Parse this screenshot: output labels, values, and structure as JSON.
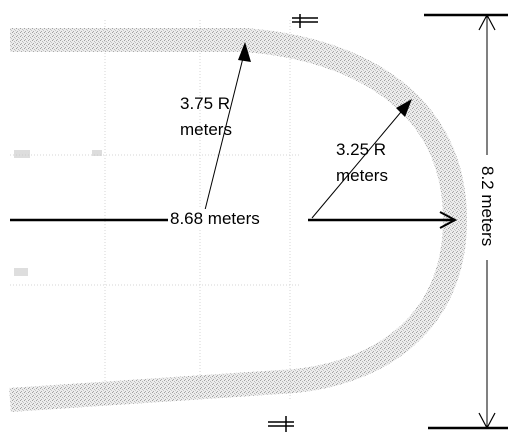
{
  "diagram": {
    "length_label": "8.68 meters",
    "width_label": "8.2 meters",
    "radius_outer_value": "3.75 R",
    "radius_outer_unit": "meters",
    "radius_inner_value": "3.25 R",
    "radius_inner_unit": "meters"
  },
  "colors": {
    "line": "#000000",
    "track_fill": "#b4b4b4",
    "grid": "#d2d2d2",
    "background": "#ffffff"
  }
}
